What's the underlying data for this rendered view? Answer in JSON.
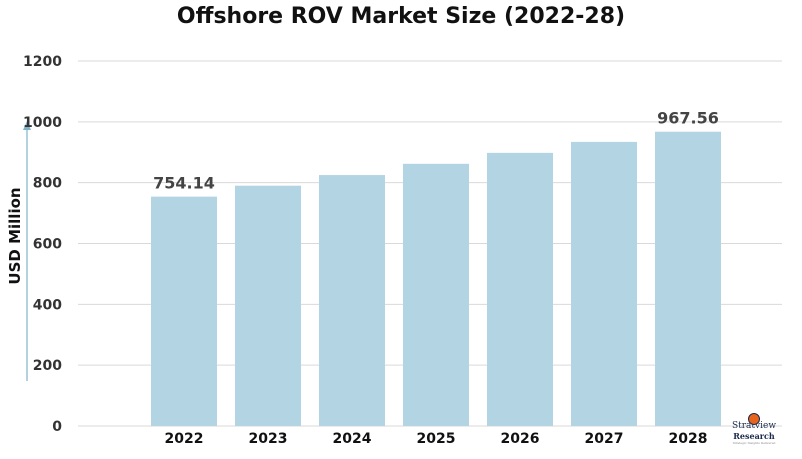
{
  "chart_data": {
    "type": "bar",
    "title": "Offshore ROV Market Size (2022-28)",
    "ylabel": "USD Million",
    "xlabel": "",
    "categories": [
      "2022",
      "2023",
      "2024",
      "2025",
      "2026",
      "2027",
      "2028"
    ],
    "values": [
      754.14,
      790,
      825,
      862,
      898,
      934,
      967.56
    ],
    "data_labels": [
      {
        "category": "2022",
        "text": "754.14"
      },
      {
        "category": "2028",
        "text": "967.56"
      }
    ],
    "ylim": [
      0,
      1200
    ],
    "yticks": [
      0,
      200,
      400,
      600,
      800,
      1000,
      1200
    ],
    "grid": true,
    "bar_color": "#b3d4e2",
    "arrow_color": "#7fb3c9"
  },
  "logo": {
    "line1": "Stratview",
    "line2": "Research",
    "line3": "Strategic Insights Delivered"
  }
}
